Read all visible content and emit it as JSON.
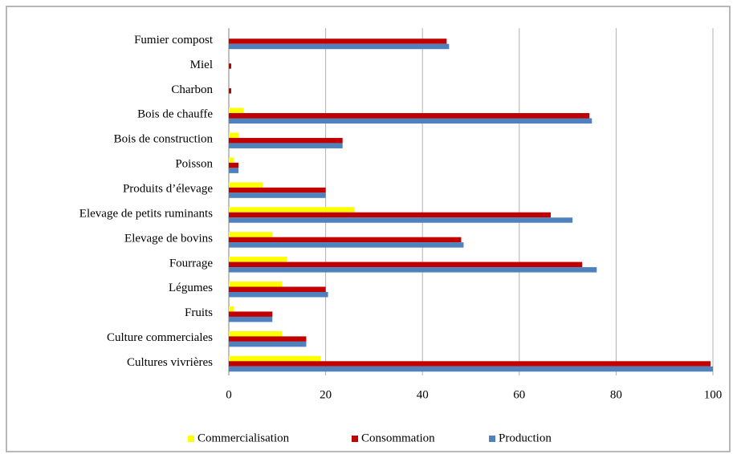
{
  "chart_data": {
    "type": "hbar",
    "categories": [
      "Fumier compost",
      "Miel",
      "Charbon",
      "Bois de chauffe",
      "Bois de construction",
      "Poisson",
      "Produits d’élevage",
      "Elevage de petits ruminants",
      "Elevage de bovins",
      "Fourrage",
      "Légumes",
      "Fruits",
      "Culture commerciales",
      "Cultures vivrières"
    ],
    "series": [
      {
        "name": "Commercialisation",
        "color": "#ffff00",
        "values": [
          0,
          0,
          0,
          3,
          2,
          1,
          7,
          26,
          9,
          12,
          11,
          1,
          11,
          19
        ]
      },
      {
        "name": "Consommation",
        "color": "#c00000",
        "values": [
          45,
          0.5,
          0.5,
          74.5,
          23.5,
          2,
          20,
          66.5,
          48,
          73,
          20,
          9,
          16,
          99.5
        ]
      },
      {
        "name": "Production",
        "color": "#4f81bd",
        "values": [
          45.5,
          0,
          0,
          75,
          23.5,
          2,
          20,
          71,
          48.5,
          76,
          20.5,
          9,
          16,
          100
        ]
      }
    ],
    "xlim": [
      0,
      100
    ],
    "xticks": [
      0,
      20,
      40,
      60,
      80,
      100
    ],
    "grid": true,
    "legend": "bottom"
  }
}
